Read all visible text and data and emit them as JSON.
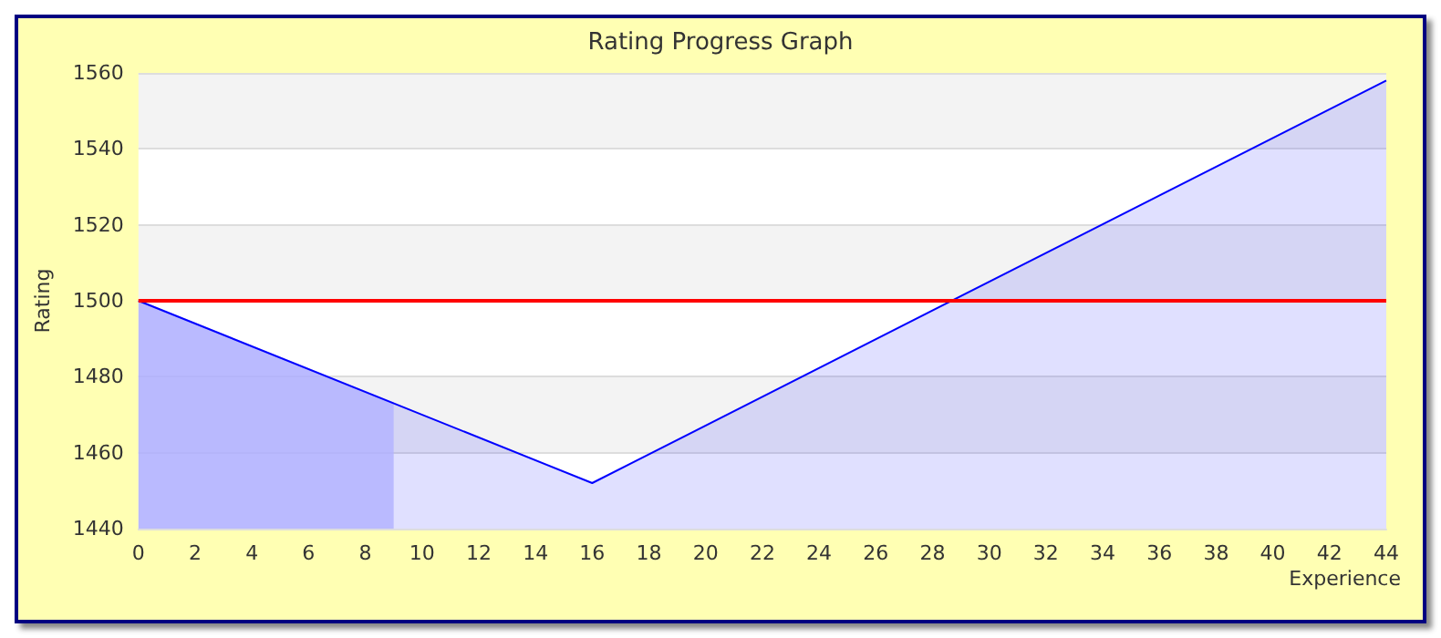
{
  "chart_data": {
    "type": "area",
    "title": "Rating Progress Graph",
    "xlabel": "Experience",
    "ylabel": "Rating",
    "series": [
      {
        "color": "#0000ff",
        "x": [
          0,
          16,
          44
        ],
        "values": [
          1500,
          1452,
          1558
        ]
      },
      {
        "color": "#ccccff",
        "x": [
          0,
          9
        ],
        "values": [
          1500,
          1473
        ]
      }
    ],
    "xlim": [
      0,
      44
    ],
    "xticks": [
      0,
      2,
      4,
      6,
      8,
      10,
      12,
      14,
      16,
      18,
      20,
      22,
      24,
      26,
      28,
      30,
      32,
      34,
      36,
      38,
      40,
      42,
      44
    ],
    "ylim": [
      1440,
      1560
    ],
    "yticks": [
      1440,
      1460,
      1480,
      1500,
      1520,
      1540,
      1560
    ],
    "ref_lines": [
      {
        "axis": "y",
        "value": 1500,
        "color": "#ff0000"
      }
    ],
    "grid": "y"
  }
}
